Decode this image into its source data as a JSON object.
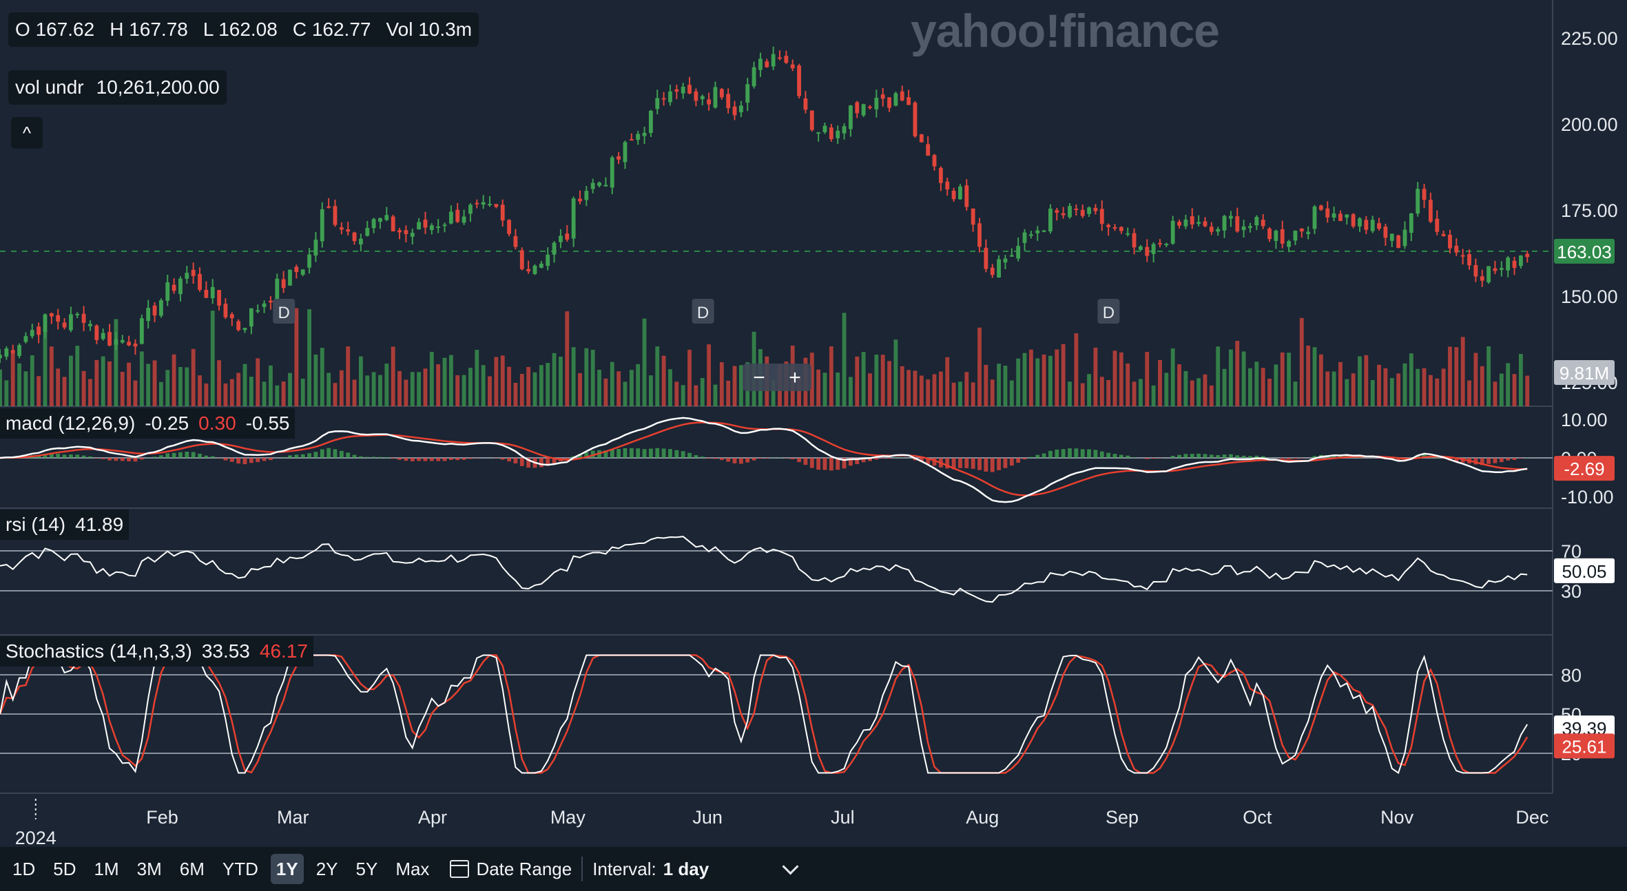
{
  "header": {
    "ohlc": [
      {
        "label": "O",
        "value": "167.62"
      },
      {
        "label": "H",
        "value": "167.78"
      },
      {
        "label": "L",
        "value": "162.08"
      },
      {
        "label": "C",
        "value": "162.77"
      },
      {
        "label": "Vol",
        "value": "10.3m"
      }
    ],
    "vol_label": "vol undr",
    "vol_value": "10,261,200.00",
    "collapse_glyph": "^",
    "watermark": "yahoo!finance"
  },
  "indicators": {
    "macd": {
      "name": "macd (12,26,9)",
      "v1": "-0.25",
      "v2": "0.30",
      "v3": "-0.55"
    },
    "rsi": {
      "name": "rsi (14)",
      "v1": "41.89"
    },
    "stoch": {
      "name": "Stochastics (14,n,3,3)",
      "v1": "33.53",
      "v2": "46.17"
    }
  },
  "bottom_bar": {
    "ranges": [
      "1D",
      "5D",
      "1M",
      "3M",
      "6M",
      "YTD",
      "1Y",
      "2Y",
      "5Y",
      "Max"
    ],
    "active_range": "1Y",
    "date_range_label": "Date Range",
    "interval_label": "Interval:",
    "interval_value": "1 day"
  },
  "colors": {
    "up": "#3fa052",
    "down": "#e0463c",
    "macd_signal": "#e8402f",
    "rsi": "#ffffff",
    "stoch_d": "#e8402f"
  },
  "chart_data": {
    "type": "candlestick",
    "x_labels": [
      "2024",
      "Feb",
      "Mar",
      "Apr",
      "May",
      "Jun",
      "Jul",
      "Aug",
      "Sep",
      "Oct",
      "Nov",
      "Dec"
    ],
    "zoom_controls": [
      "−",
      "+"
    ],
    "dividend_marker": "D",
    "price_panel": {
      "ticks": [
        "225.00",
        "200.00",
        "175.00",
        "150.00",
        "125.00"
      ],
      "ylim": [
        118,
        236
      ],
      "last_price": "163.03",
      "volume_badge": "9.81M",
      "dividend_dates": [
        "Feb 28",
        "May 31",
        "Aug 29"
      ],
      "closes": [
        {
          "x": "Dec 27",
          "y": 133
        },
        {
          "x": "Jan 03",
          "y": 140
        },
        {
          "x": "Jan 08",
          "y": 144
        },
        {
          "x": "Jan 10",
          "y": 142
        },
        {
          "x": "Jan 15",
          "y": 145
        },
        {
          "x": "Jan 17",
          "y": 139
        },
        {
          "x": "Jan 22",
          "y": 137
        },
        {
          "x": "Jan 26",
          "y": 138
        },
        {
          "x": "Jan 31",
          "y": 148
        },
        {
          "x": "Feb 06",
          "y": 157
        },
        {
          "x": "Feb 12",
          "y": 150
        },
        {
          "x": "Feb 18",
          "y": 141
        },
        {
          "x": "Feb 26",
          "y": 152
        },
        {
          "x": "Mar 01",
          "y": 156
        },
        {
          "x": "Mar 05",
          "y": 162
        },
        {
          "x": "Mar 08",
          "y": 176
        },
        {
          "x": "Mar 14",
          "y": 168
        },
        {
          "x": "Mar 20",
          "y": 172
        },
        {
          "x": "Mar 26",
          "y": 168
        },
        {
          "x": "Apr 03",
          "y": 172
        },
        {
          "x": "Apr 09",
          "y": 175
        },
        {
          "x": "Apr 15",
          "y": 174
        },
        {
          "x": "Apr 22",
          "y": 158
        },
        {
          "x": "Apr 26",
          "y": 162
        },
        {
          "x": "May 01",
          "y": 168
        },
        {
          "x": "May 03",
          "y": 180
        },
        {
          "x": "May 09",
          "y": 184
        },
        {
          "x": "May 14",
          "y": 193
        },
        {
          "x": "May 20",
          "y": 203
        },
        {
          "x": "May 24",
          "y": 213
        },
        {
          "x": "May 30",
          "y": 205
        },
        {
          "x": "Jun 04",
          "y": 210
        },
        {
          "x": "Jun 07",
          "y": 205
        },
        {
          "x": "Jun 12",
          "y": 216
        },
        {
          "x": "Jun 17",
          "y": 222
        },
        {
          "x": "Jun 20",
          "y": 216
        },
        {
          "x": "Jun 24",
          "y": 200
        },
        {
          "x": "Jun 28",
          "y": 197
        },
        {
          "x": "Jul 03",
          "y": 205
        },
        {
          "x": "Jul 09",
          "y": 208
        },
        {
          "x": "Jul 15",
          "y": 207
        },
        {
          "x": "Jul 18",
          "y": 193
        },
        {
          "x": "Jul 24",
          "y": 182
        },
        {
          "x": "Jul 29",
          "y": 178
        },
        {
          "x": "Aug 02",
          "y": 158
        },
        {
          "x": "Aug 07",
          "y": 162
        },
        {
          "x": "Aug 12",
          "y": 168
        },
        {
          "x": "Aug 16",
          "y": 173
        },
        {
          "x": "Aug 22",
          "y": 174
        },
        {
          "x": "Aug 27",
          "y": 172
        },
        {
          "x": "Sep 03",
          "y": 165
        },
        {
          "x": "Sep 06",
          "y": 160
        },
        {
          "x": "Sep 11",
          "y": 168
        },
        {
          "x": "Sep 16",
          "y": 172
        },
        {
          "x": "Sep 20",
          "y": 168
        },
        {
          "x": "Sep 25",
          "y": 172
        },
        {
          "x": "Oct 01",
          "y": 170
        },
        {
          "x": "Oct 07",
          "y": 167
        },
        {
          "x": "Oct 11",
          "y": 170
        },
        {
          "x": "Oct 16",
          "y": 176
        },
        {
          "x": "Oct 22",
          "y": 172
        },
        {
          "x": "Oct 28",
          "y": 169
        },
        {
          "x": "Nov 01",
          "y": 165
        },
        {
          "x": "Nov 06",
          "y": 180
        },
        {
          "x": "Nov 11",
          "y": 168
        },
        {
          "x": "Nov 15",
          "y": 162
        },
        {
          "x": "Nov 20",
          "y": 157
        },
        {
          "x": "Nov 25",
          "y": 158
        },
        {
          "x": "Nov 29",
          "y": 163
        }
      ]
    },
    "macd_panel": {
      "ticks": [
        "10.00",
        "0.00",
        "-10.00"
      ],
      "ylim": [
        -13,
        13
      ],
      "last_value": "-2.69"
    },
    "rsi_panel": {
      "ticks": [
        "70",
        "30"
      ],
      "ylim": [
        0,
        100
      ],
      "last_value": "50.05"
    },
    "stoch_panel": {
      "ticks": [
        "80",
        "50",
        "20"
      ],
      "ylim": [
        0,
        100
      ],
      "k_last": "39.39",
      "d_last": "25.61"
    }
  }
}
